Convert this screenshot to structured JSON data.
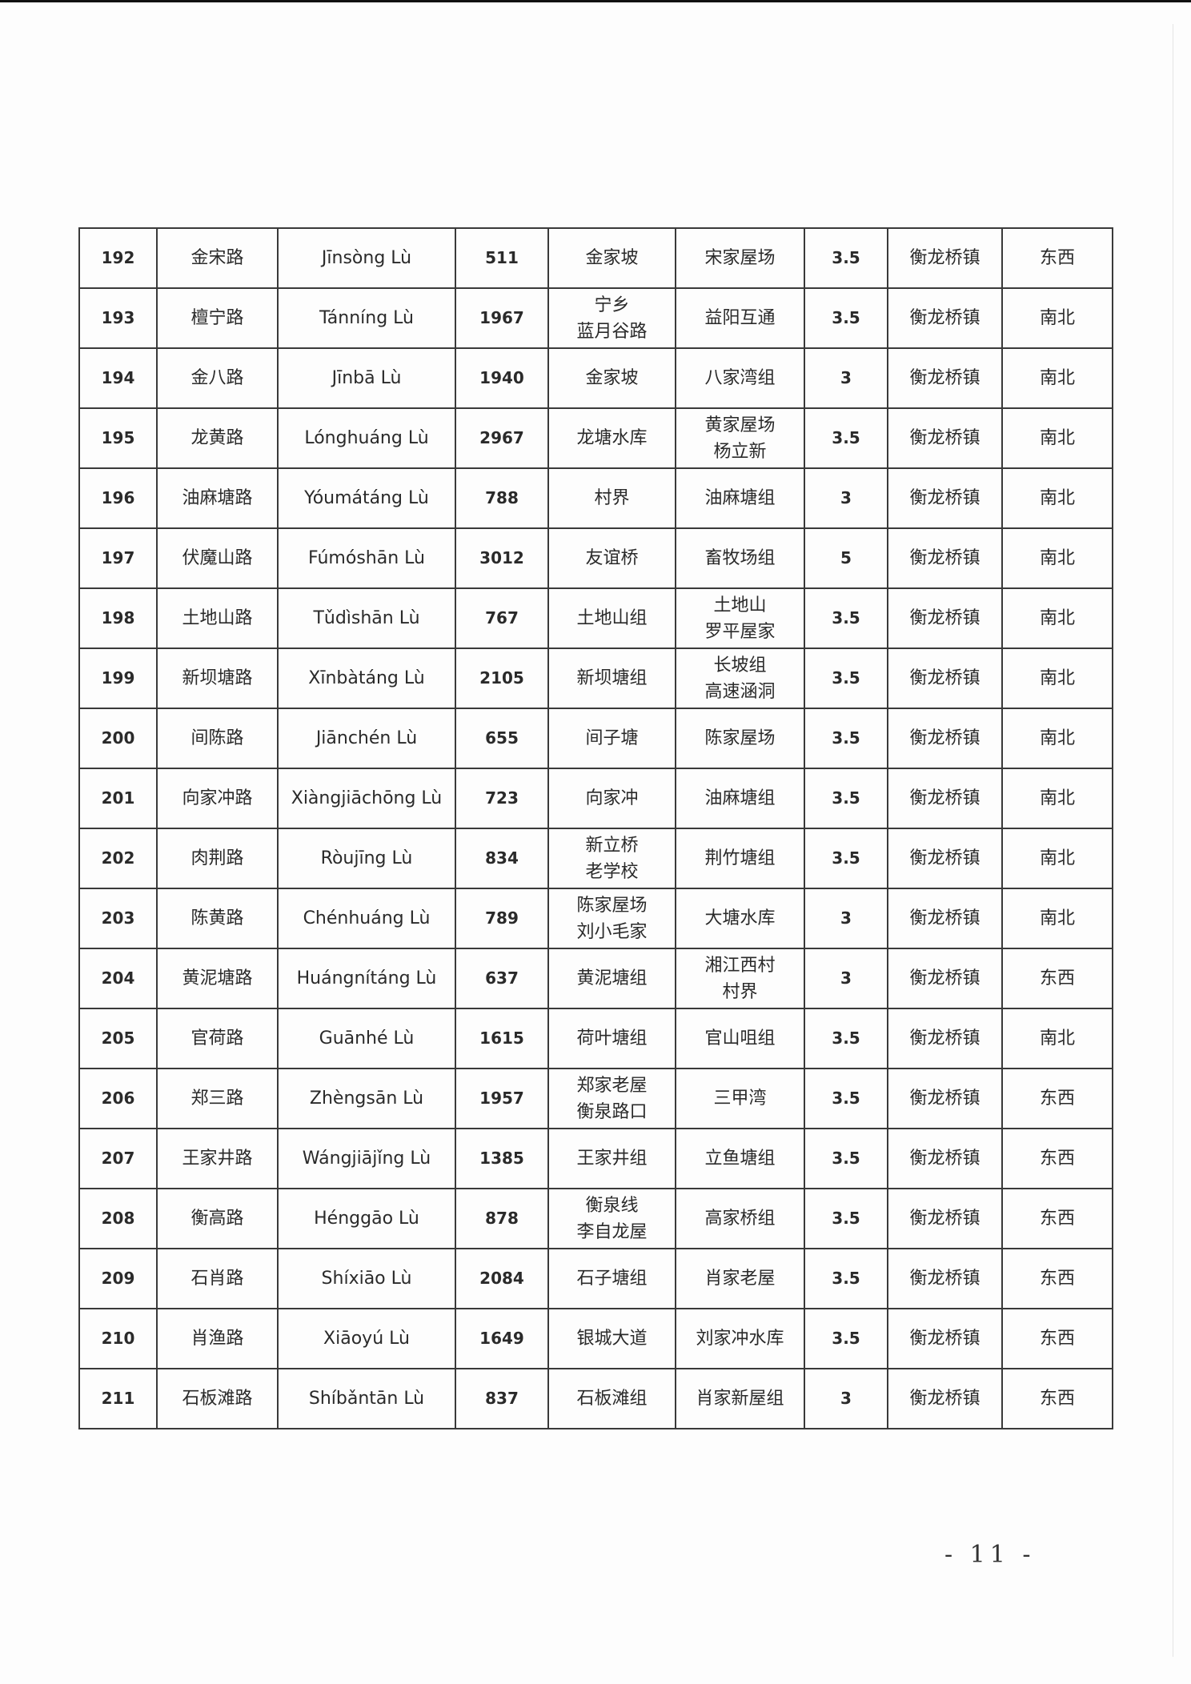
{
  "table": {
    "rows": [
      [
        "192",
        "金宋路",
        "Jīnsòng Lù",
        "511",
        "金家坡",
        "宋家屋场",
        "3.5",
        "衡龙桥镇",
        "东西"
      ],
      [
        "193",
        "檀宁路",
        "Tánníng Lù",
        "1967",
        "宁乡\n蓝月谷路",
        "益阳互通",
        "3.5",
        "衡龙桥镇",
        "南北"
      ],
      [
        "194",
        "金八路",
        "Jīnbā  Lù",
        "1940",
        "金家坡",
        "八家湾组",
        "3",
        "衡龙桥镇",
        "南北"
      ],
      [
        "195",
        "龙黄路",
        "Lónghuáng Lù",
        "2967",
        "龙塘水库",
        "黄家屋场\n杨立新",
        "3.5",
        "衡龙桥镇",
        "南北"
      ],
      [
        "196",
        "油麻塘路",
        "Yóumátáng Lù",
        "788",
        "村界",
        "油麻塘组",
        "3",
        "衡龙桥镇",
        "南北"
      ],
      [
        "197",
        "伏魔山路",
        "Fúmóshān Lù",
        "3012",
        "友谊桥",
        "畜牧场组",
        "5",
        "衡龙桥镇",
        "南北"
      ],
      [
        "198",
        "土地山路",
        "Tǔdìshān Lù",
        "767",
        "土地山组",
        "土地山\n罗平屋家",
        "3.5",
        "衡龙桥镇",
        "南北"
      ],
      [
        "199",
        "新坝塘路",
        "Xīnbàtáng Lù",
        "2105",
        "新坝塘组",
        "长坡组\n高速涵洞",
        "3.5",
        "衡龙桥镇",
        "南北"
      ],
      [
        "200",
        "间陈路",
        "Jiānchén Lù",
        "655",
        "间子塘",
        "陈家屋场",
        "3.5",
        "衡龙桥镇",
        "南北"
      ],
      [
        "201",
        "向家冲路",
        "Xiàngjiāchōng Lù",
        "723",
        "向家冲",
        "油麻塘组",
        "3.5",
        "衡龙桥镇",
        "南北"
      ],
      [
        "202",
        "肉荆路",
        "Ròujīng Lù",
        "834",
        "新立桥\n老学校",
        "荆竹塘组",
        "3.5",
        "衡龙桥镇",
        "南北"
      ],
      [
        "203",
        "陈黄路",
        "Chénhuáng Lù",
        "789",
        "陈家屋场\n刘小毛家",
        "大塘水库",
        "3",
        "衡龙桥镇",
        "南北"
      ],
      [
        "204",
        "黄泥塘路",
        "Huángnítáng Lù",
        "637",
        "黄泥塘组",
        "湘江西村\n村界",
        "3",
        "衡龙桥镇",
        "东西"
      ],
      [
        "205",
        "官荷路",
        "Guānhé Lù",
        "1615",
        "荷叶塘组",
        "官山咀组",
        "3.5",
        "衡龙桥镇",
        "南北"
      ],
      [
        "206",
        "郑三路",
        "Zhèngsān Lù",
        "1957",
        "郑家老屋\n衡泉路口",
        "三甲湾",
        "3.5",
        "衡龙桥镇",
        "东西"
      ],
      [
        "207",
        "王家井路",
        "Wángjiājǐng Lù",
        "1385",
        "王家井组",
        "立鱼塘组",
        "3.5",
        "衡龙桥镇",
        "东西"
      ],
      [
        "208",
        "衡高路",
        "Hénggāo Lù",
        "878",
        "衡泉线\n李自龙屋",
        "高家桥组",
        "3.5",
        "衡龙桥镇",
        "东西"
      ],
      [
        "209",
        "石肖路",
        "Shíxiāo Lù",
        "2084",
        "石子塘组",
        "肖家老屋",
        "3.5",
        "衡龙桥镇",
        "东西"
      ],
      [
        "210",
        "肖渔路",
        "Xiāoyú Lù",
        "1649",
        "银城大道",
        "刘家冲水库",
        "3.5",
        "衡龙桥镇",
        "东西"
      ],
      [
        "211",
        "石板滩路",
        "Shíbǎntān Lù",
        "837",
        "石板滩组",
        "肖家新屋组",
        "3",
        "衡龙桥镇",
        "东西"
      ]
    ]
  },
  "page_number": "- 11 -"
}
